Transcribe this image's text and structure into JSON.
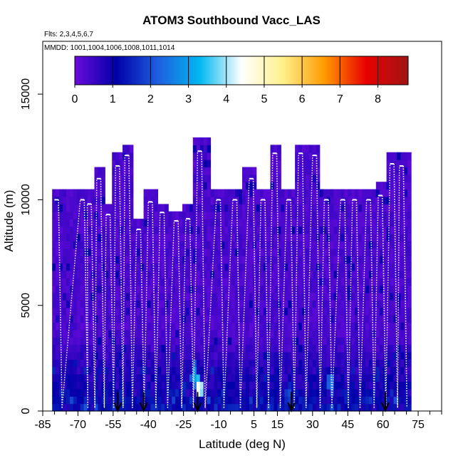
{
  "chart_data": {
    "type": "heatmap",
    "title": "ATOM3 Southbound Vacc_LAS",
    "annotations": [
      "Flts: 2,3,4,5,6,7",
      "MMDD: 1001,1004,1006,1008,1011,1014"
    ],
    "xlabel": "Latitude (deg N)",
    "ylabel": "Altitude (m)",
    "xlim": [
      -85,
      85
    ],
    "ylim": [
      0,
      17500
    ],
    "x_ticks": [
      -85,
      -70,
      -55,
      -40,
      -25,
      -10,
      5,
      15,
      30,
      45,
      60,
      75
    ],
    "y_ticks": [
      0,
      5000,
      10000,
      15000
    ],
    "colorbar": {
      "ticks": [
        0,
        1,
        2,
        3,
        4,
        5,
        6,
        7,
        8
      ],
      "range": [
        0,
        8.8
      ],
      "location": "top",
      "colors": [
        "#6a0bdc",
        "#0000a8",
        "#1f5fe0",
        "#00b8f0",
        "#ffffff",
        "#fff08a",
        "#ff9900",
        "#e80000",
        "#a01515"
      ]
    },
    "profiles": [
      {
        "lat": -80,
        "top": 10000
      },
      {
        "lat": -69,
        "top": 10000
      },
      {
        "lat": -66,
        "top": 9800
      },
      {
        "lat": -62,
        "top": 11000
      },
      {
        "lat": -58,
        "top": 9300
      },
      {
        "lat": -54,
        "top": 11600
      },
      {
        "lat": -50,
        "top": 12100
      },
      {
        "lat": -45,
        "top": 8600
      },
      {
        "lat": -40,
        "top": 9900
      },
      {
        "lat": -35,
        "top": 9400
      },
      {
        "lat": -29,
        "top": 9000
      },
      {
        "lat": -24,
        "top": 9100
      },
      {
        "lat": -19,
        "top": 12300
      },
      {
        "lat": -11,
        "top": 10000
      },
      {
        "lat": -4,
        "top": 10000
      },
      {
        "lat": 3,
        "top": 11000
      },
      {
        "lat": 8,
        "top": 10000
      },
      {
        "lat": 13,
        "top": 12200
      },
      {
        "lat": 19,
        "top": 10000
      },
      {
        "lat": 24,
        "top": 12200
      },
      {
        "lat": 30,
        "top": 12100
      },
      {
        "lat": 35,
        "top": 10000
      },
      {
        "lat": 42,
        "top": 10000
      },
      {
        "lat": 47,
        "top": 10000
      },
      {
        "lat": 53,
        "top": 10000
      },
      {
        "lat": 58,
        "top": 10200
      },
      {
        "lat": 63,
        "top": 11700
      },
      {
        "lat": 67,
        "top": 11600
      }
    ],
    "hotspots": [
      {
        "lat": -19,
        "alt": 900,
        "value": 5.5
      },
      {
        "lat": -21,
        "alt": 1500,
        "value": 3.2
      },
      {
        "lat": 37,
        "alt": 1200,
        "value": 3.0
      },
      {
        "lat": 19,
        "alt": 600,
        "value": 2.3
      },
      {
        "lat": 44,
        "alt": 500,
        "value": 1.8
      }
    ],
    "arrows": [
      -53,
      -42,
      -19,
      21,
      61
    ]
  }
}
